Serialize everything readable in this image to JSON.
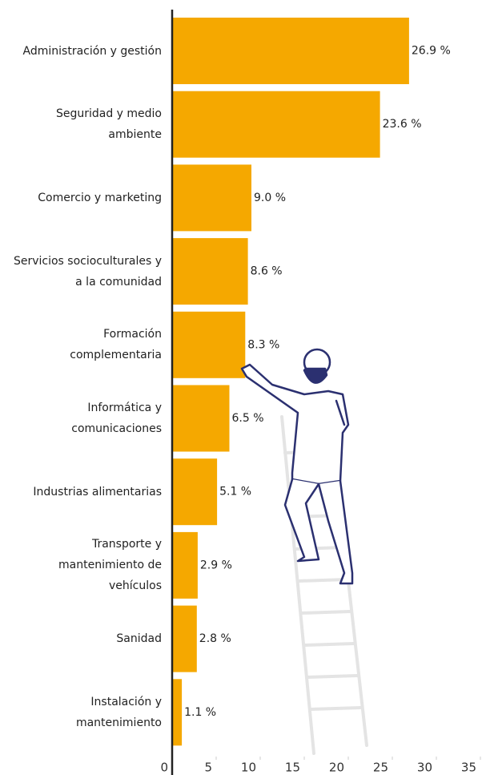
{
  "chart_data": {
    "type": "hbar",
    "categories": [
      "Administración y gestión",
      "Seguridad y medio\nambiente",
      "Comercio y marketing",
      "Servicios socioculturales y\na la comunidad",
      "Formación\ncomplementaria",
      "Informática y\ncomunicaciones",
      "Industrias alimentarias",
      "Transporte y\nmantenimiento de\nvehículos",
      "Sanidad",
      "Instalación y\nmantenimiento"
    ],
    "values": [
      26.9,
      23.6,
      9.0,
      8.6,
      8.3,
      6.5,
      5.1,
      2.9,
      2.8,
      1.1
    ],
    "value_labels": [
      "26.9 %",
      "23.6 %",
      "9.0 %",
      "8.6 %",
      "8.3 %",
      "6.5 %",
      "5.1 %",
      "2.9 %",
      "2.8 %",
      "1.1 %"
    ],
    "color": "#f5a800",
    "xlim": [
      0,
      35
    ],
    "xticks": [
      0,
      5,
      10,
      15,
      20,
      25,
      30,
      35
    ]
  }
}
